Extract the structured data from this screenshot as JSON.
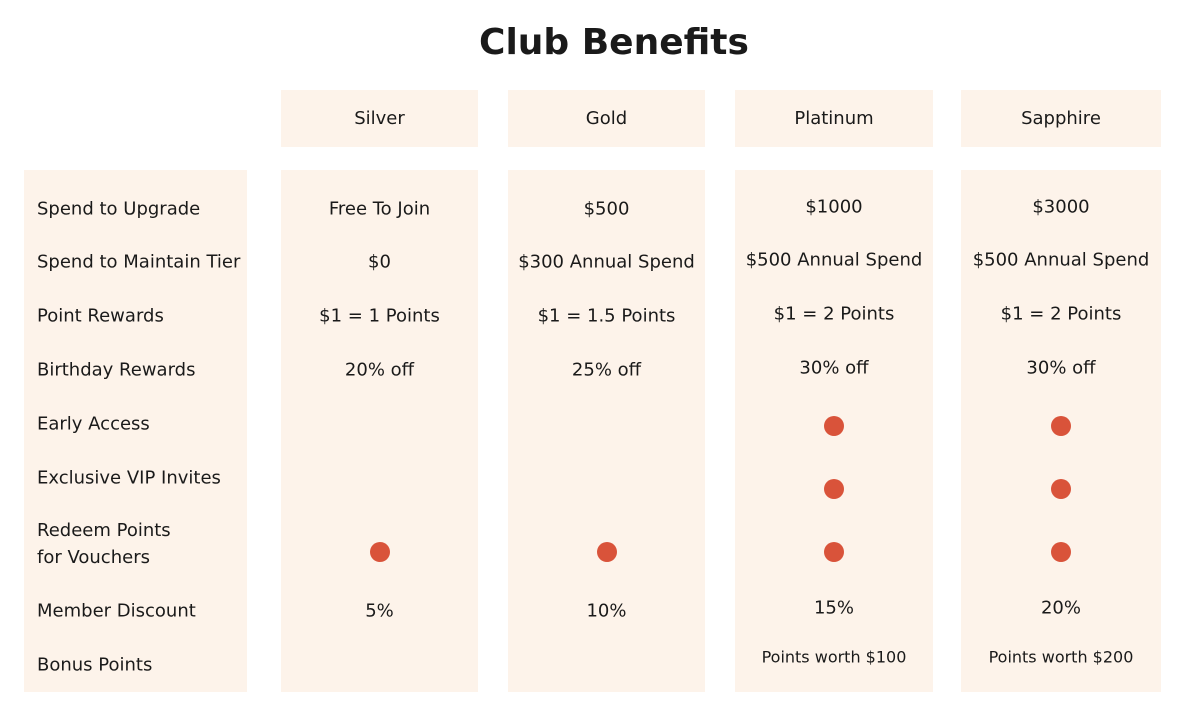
{
  "title": "Club Benefits",
  "tiers": [
    "Silver",
    "Gold",
    "Platinum",
    "Sapphire"
  ],
  "rows": [
    {
      "label": "Spend to Upgrade",
      "cells": [
        "Free To Join",
        "$500",
        "$1000",
        "$3000"
      ]
    },
    {
      "label": "Spend to Maintain Tier",
      "cells": [
        "$0",
        "$300 Annual Spend",
        "$500 Annual Spend",
        "$500 Annual Spend"
      ]
    },
    {
      "label": "Point Rewards",
      "cells": [
        "$1 = 1 Points",
        "$1 = 1.5 Points",
        "$1 = 2 Points",
        "$1 = 2 Points"
      ]
    },
    {
      "label": "Birthday Rewards",
      "cells": [
        "20% off",
        "25% off",
        "30% off",
        "30% off"
      ]
    },
    {
      "label": "Early Access",
      "cells": [
        null,
        null,
        true,
        true
      ]
    },
    {
      "label": "Exclusive VIP Invites",
      "cells": [
        null,
        null,
        true,
        true
      ]
    },
    {
      "label": "Redeem Points\nfor Vouchers",
      "cells": [
        true,
        true,
        true,
        true
      ]
    },
    {
      "label": "Member Discount",
      "cells": [
        "5%",
        "10%",
        "15%",
        "20%"
      ]
    },
    {
      "label": "Bonus Points",
      "cells": [
        null,
        null,
        "Points worth $100",
        "Points worth $200"
      ]
    }
  ]
}
